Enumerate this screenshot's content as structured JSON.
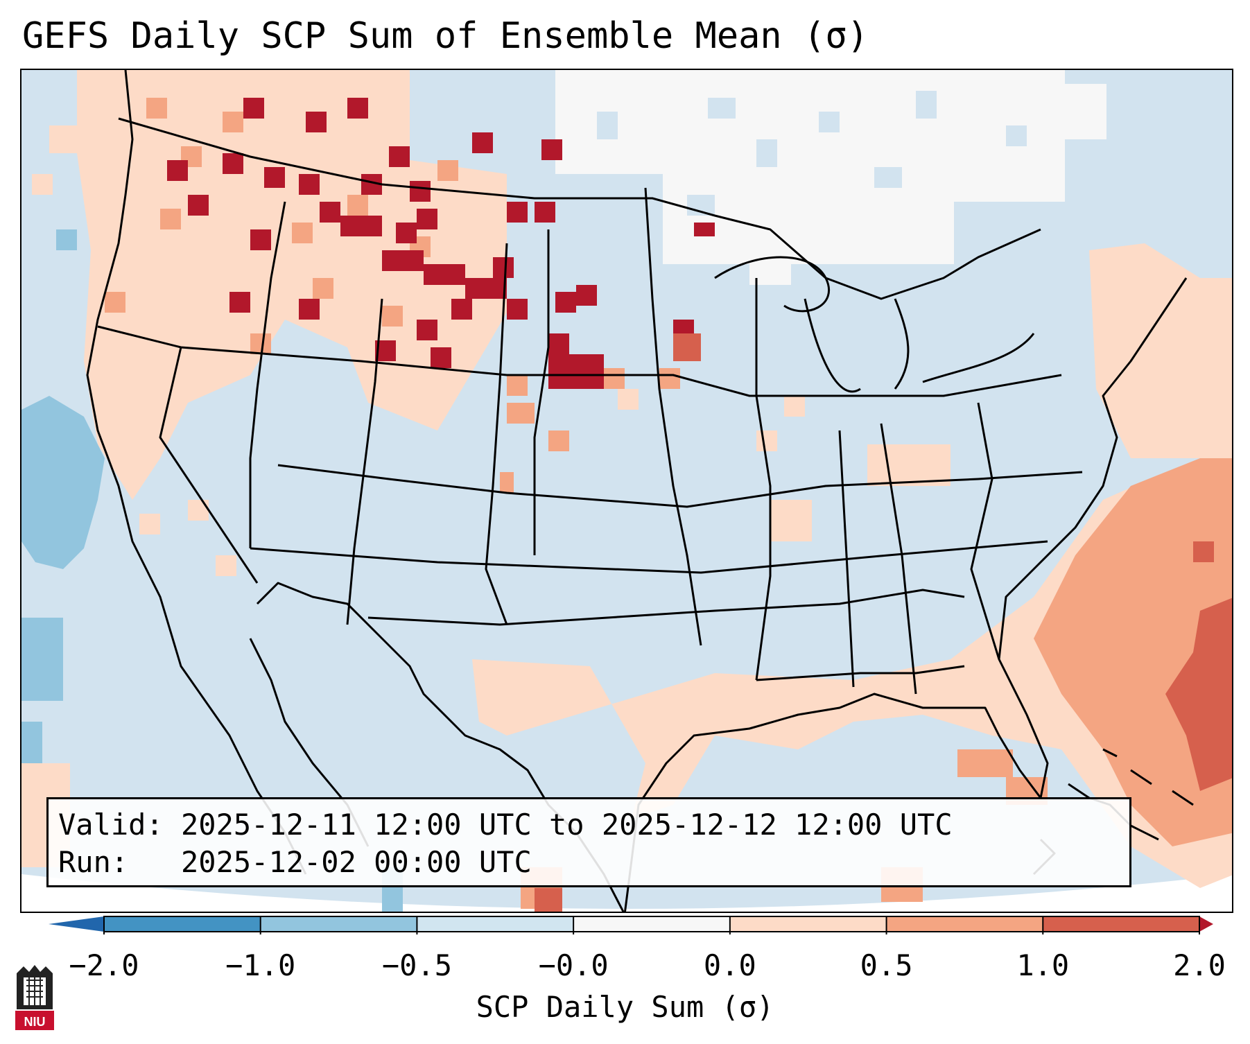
{
  "title": "GEFS Daily SCP Sum of Ensemble Mean (σ)",
  "info": {
    "valid_label": "Valid:",
    "valid_value": "2025-12-11 12:00 UTC to 2025-12-12 12:00 UTC",
    "run_label": "Run:",
    "run_value": "2025-12-02 00:00 UTC"
  },
  "colorbar": {
    "label": "SCP Daily Sum (σ)",
    "ticks": [
      "−2.0",
      "−1.0",
      "−0.5",
      "−0.0",
      "0.0",
      "0.5",
      "1.0",
      "2.0"
    ],
    "bins": [
      {
        "from": -2.0,
        "to": -1.0,
        "color": "#4393c3"
      },
      {
        "from": -1.0,
        "to": -0.5,
        "color": "#92c5de"
      },
      {
        "from": -0.5,
        "to": -0.0,
        "color": "#d1e5f0"
      },
      {
        "from": 0.0,
        "to": 0.0,
        "color": "#f7f7f7"
      },
      {
        "from": 0.0,
        "to": 0.5,
        "color": "#fddbc7"
      },
      {
        "from": 0.5,
        "to": 1.0,
        "color": "#f4a582"
      },
      {
        "from": 1.0,
        "to": 2.0,
        "color": "#d6604d"
      }
    ],
    "under_color": "#2166ac",
    "over_color": "#b2182b"
  },
  "map": {
    "background_color": "#d2e3ef",
    "anomaly_regions": [
      {
        "name": "pacific-northwest-positive",
        "level": "0.0 to 0.5"
      },
      {
        "name": "northern-rockies-strong-positive",
        "level": "> 2.0"
      },
      {
        "name": "western-atlantic-positive",
        "level": "1.0 to 2.0"
      },
      {
        "name": "gulf-of-mexico-positive",
        "level": "0.0 to 0.5"
      },
      {
        "name": "eastern-pacific-negative",
        "level": "-1.0 to -0.5"
      },
      {
        "name": "canada-near-zero",
        "level": "-0.0 to 0.0"
      }
    ]
  },
  "logo": {
    "text": "NIU"
  }
}
